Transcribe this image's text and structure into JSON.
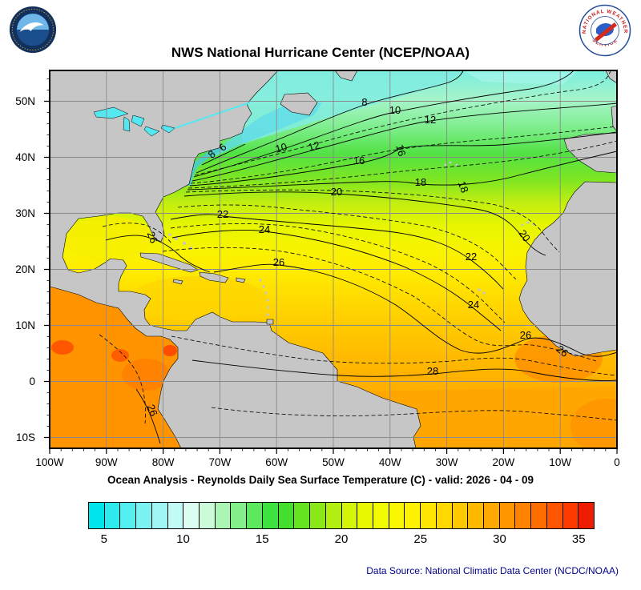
{
  "header": {
    "title": "NWS National Hurricane Center (NCEP/NOAA)",
    "nws_circle_top": "NATIONAL WEATHER",
    "nws_circle_bottom": "SERVICE"
  },
  "map": {
    "lat_labels": [
      "50N",
      "40N",
      "30N",
      "20N",
      "10N",
      "0",
      "10S"
    ],
    "lon_labels": [
      "100W",
      "90W",
      "80W",
      "70W",
      "60W",
      "50W",
      "40W",
      "30W",
      "20W",
      "10W",
      "0"
    ],
    "contour_labels": [
      "8",
      "10",
      "12",
      "6",
      "8",
      "10",
      "12",
      "16",
      "16",
      "18",
      "18",
      "20",
      "20",
      "22",
      "22",
      "24",
      "24",
      "26",
      "26",
      "26",
      "26",
      "26",
      "28"
    ]
  },
  "footer": {
    "subtitle": "Ocean Analysis - Reynolds Daily Sea Surface Temperature (C) - valid: 2026 - 04 - 09",
    "data_source": "Data Source: National Climatic Data Center (NCDC/NOAA)"
  },
  "colorbar": {
    "tick_labels": [
      "5",
      "10",
      "15",
      "20",
      "25",
      "30",
      "35"
    ],
    "tick_positions_pct": [
      3.125,
      18.75,
      34.375,
      50,
      65.625,
      81.25,
      96.875
    ],
    "colors": [
      "#00E4EC",
      "#2CEAEE",
      "#55EEF0",
      "#7DF2F2",
      "#A0F6F4",
      "#C2FAF6",
      "#DCFDF2",
      "#CCFBD8",
      "#AAF6B2",
      "#84F08B",
      "#5CE95E",
      "#3EE23E",
      "#46DE2C",
      "#65E222",
      "#8BE818",
      "#B3EF10",
      "#D4F408",
      "#E7F800",
      "#F2FB00",
      "#F9F800",
      "#FFF200",
      "#FFE600",
      "#FFD800",
      "#FFC900",
      "#FFBA00",
      "#FFA800",
      "#FF9600",
      "#FF8200",
      "#FF6C00",
      "#FF5400",
      "#FF3A00",
      "#EE1C00"
    ]
  },
  "chart_data": {
    "type": "heatmap",
    "title": "NWS National Hurricane Center (NCEP/NOAA)",
    "subtitle": "Ocean Analysis - Reynolds Daily Sea Surface Temperature (C) - valid: 2026 - 04 - 09",
    "variable": "Reynolds Daily Sea Surface Temperature",
    "units": "C",
    "valid_date": "2026 - 04 - 09",
    "lon_axis": [
      "100W",
      "90W",
      "80W",
      "70W",
      "60W",
      "50W",
      "40W",
      "30W",
      "20W",
      "10W",
      "0"
    ],
    "lat_axis": [
      "50N",
      "40N",
      "30N",
      "20N",
      "10N",
      "0",
      "10S"
    ],
    "colorbar_range": [
      4,
      36
    ],
    "colorbar_ticks": [
      5,
      10,
      15,
      20,
      25,
      30,
      35
    ],
    "isotherm_labels_C": [
      6,
      8,
      10,
      12,
      16,
      18,
      20,
      22,
      24,
      26,
      28
    ],
    "data_source": "Data Source: National Climatic Data Center (NCDC/NOAA)"
  }
}
